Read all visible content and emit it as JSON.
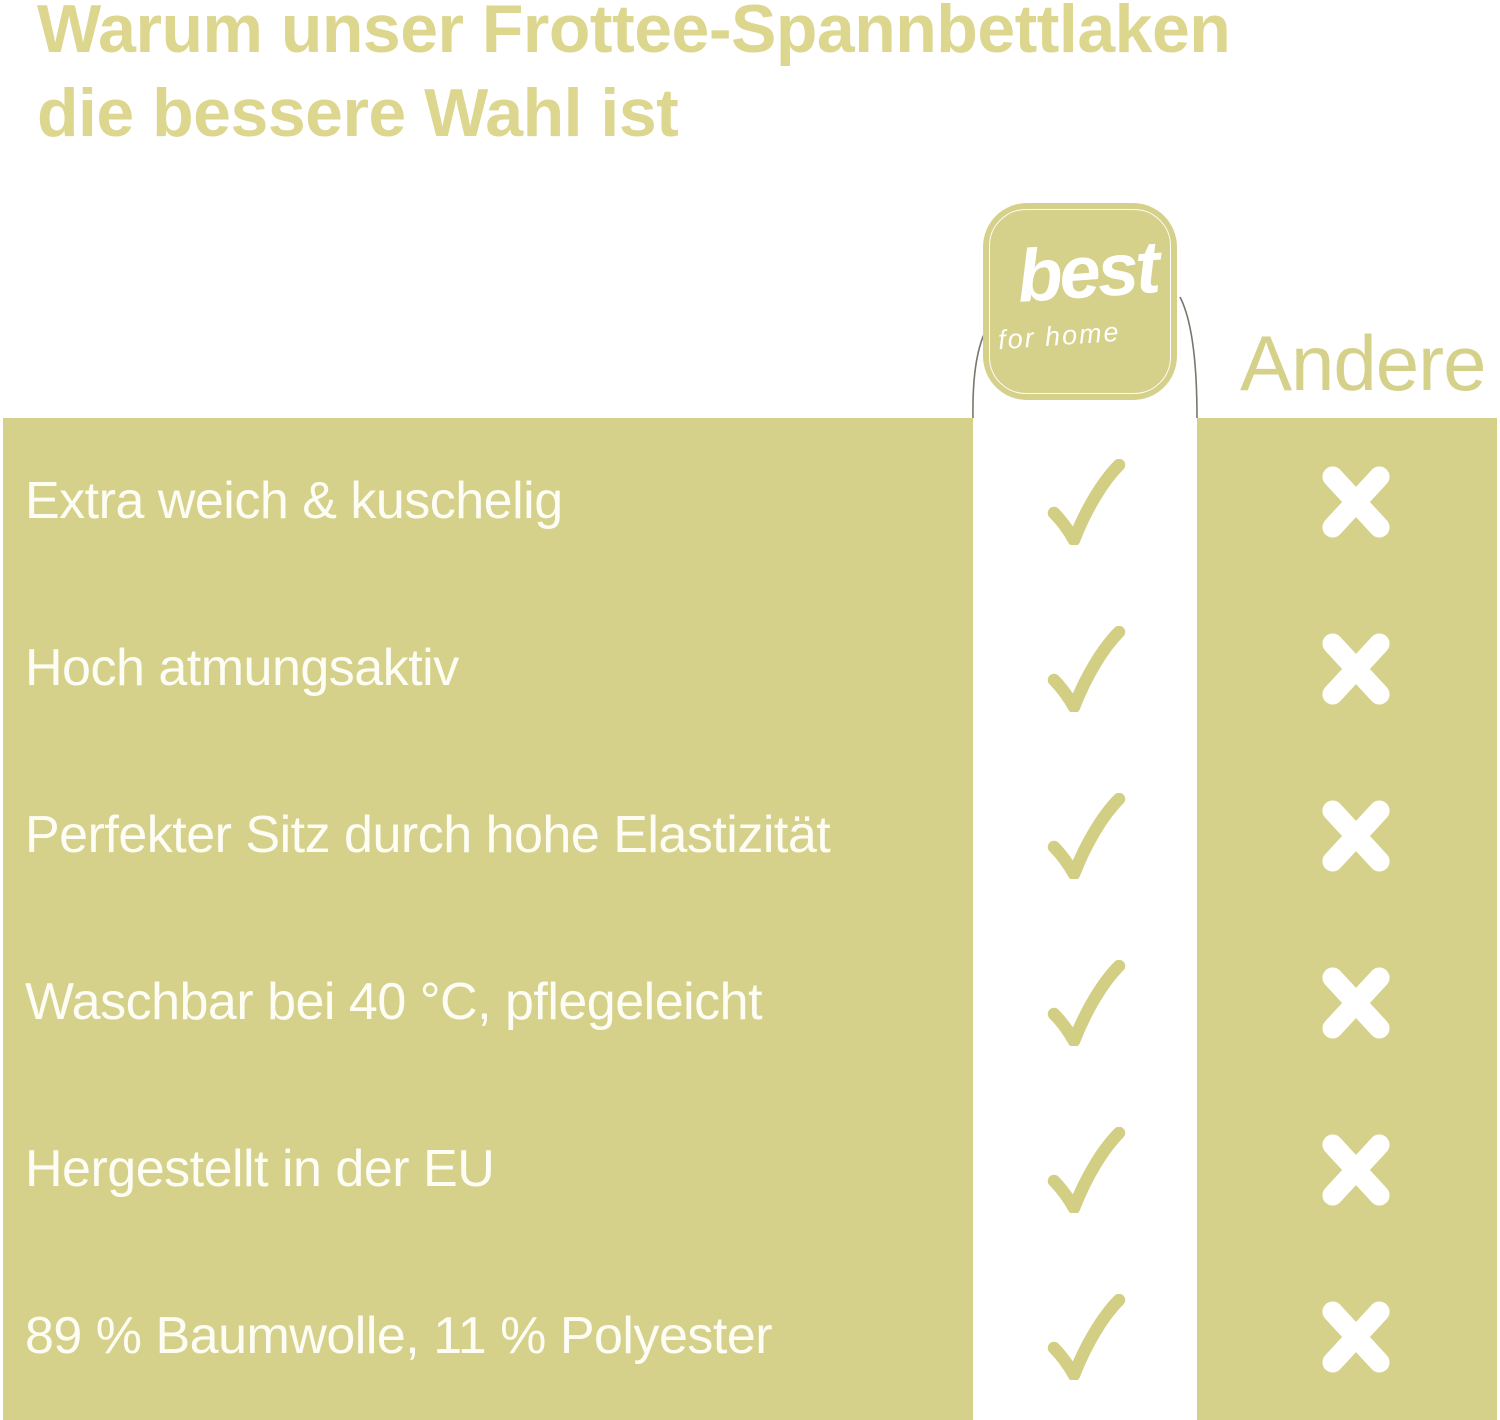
{
  "title": {
    "line1": "Warum unser Frottee-Spannbettlaken",
    "line2": "die bessere Wahl ist"
  },
  "brand": {
    "name": "best",
    "tagline": "for home"
  },
  "comparison": {
    "competitor_label": "Andere",
    "rows": [
      {
        "label": "Extra weich & kuschelig",
        "best": "check",
        "andere": "cross"
      },
      {
        "label": "Hoch atmungsaktiv",
        "best": "check",
        "andere": "cross"
      },
      {
        "label": "Perfekter Sitz durch hohe Elastizität",
        "best": "check",
        "andere": "cross"
      },
      {
        "label": "Waschbar bei 40 °C, pflegeleicht",
        "best": "check",
        "andere": "cross"
      },
      {
        "label": "Hergestellt in der EU",
        "best": "check",
        "andere": "cross"
      },
      {
        "label": "89 % Baumwolle, 11 % Polyester",
        "best": "check",
        "andere": "cross"
      }
    ]
  },
  "icons": {
    "positive": "check-icon",
    "negative": "cross-icon"
  },
  "colors": {
    "olive": "#d5d18a",
    "olive_title": "#dcd68e",
    "check": "#d2ce83",
    "row_text": "#fdfdf5",
    "background": "#ffffff",
    "shoulder_line": "#77776e"
  }
}
